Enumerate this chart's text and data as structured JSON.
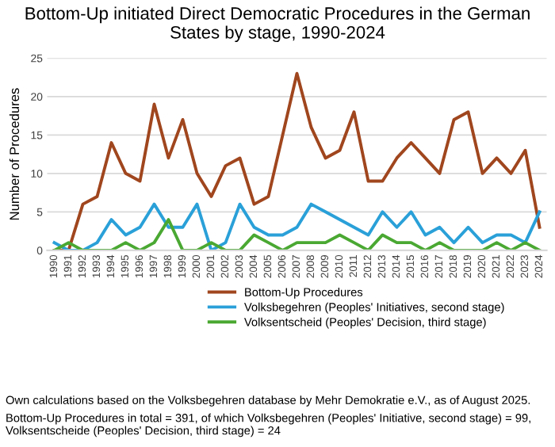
{
  "chart_data": {
    "type": "line",
    "title": "Bottom-Up initiated Direct Democratic Procedures in the German States by stage, 1990-2024",
    "ylabel": "Number of Procedures",
    "categories": [
      "1990",
      "1991",
      "1992",
      "1993",
      "1994",
      "1995",
      "1996",
      "1997",
      "1998",
      "1999",
      "2000",
      "2001",
      "2002",
      "2003",
      "2004",
      "2005",
      "2006",
      "2007",
      "2008",
      "2009",
      "2010",
      "2011",
      "2012",
      "2013",
      "2014",
      "2015",
      "2016",
      "2017",
      "2018",
      "2019",
      "2020",
      "2021",
      "2022",
      "2023",
      "2024"
    ],
    "series": [
      {
        "name": "Bottom-Up Procedures",
        "color": "#a0461e",
        "values": [
          0,
          0,
          6,
          7,
          14,
          10,
          9,
          19,
          12,
          17,
          10,
          7,
          11,
          12,
          6,
          7,
          15,
          23,
          16,
          12,
          13,
          18,
          9,
          9,
          12,
          14,
          12,
          10,
          17,
          18,
          10,
          12,
          10,
          13,
          3
        ]
      },
      {
        "name": "Volksbegehren (Peoples' Initiatives, second stage)",
        "color": "#2aa0d8",
        "values": [
          1,
          0,
          0,
          1,
          4,
          2,
          3,
          6,
          3,
          3,
          6,
          0,
          1,
          6,
          3,
          2,
          2,
          3,
          6,
          5,
          4,
          3,
          2,
          5,
          3,
          5,
          2,
          3,
          1,
          3,
          1,
          2,
          2,
          1,
          5
        ]
      },
      {
        "name": "Volksentscheid (Peoples' Decision, third stage)",
        "color": "#4aa832",
        "values": [
          0,
          1,
          0,
          0,
          0,
          1,
          0,
          1,
          4,
          0,
          0,
          1,
          0,
          0,
          2,
          1,
          0,
          1,
          1,
          1,
          2,
          1,
          0,
          2,
          1,
          1,
          0,
          1,
          0,
          0,
          0,
          1,
          0,
          1,
          0
        ]
      }
    ],
    "ylim": [
      0,
      25
    ],
    "yticks": [
      0,
      5,
      10,
      15,
      20,
      25
    ],
    "grid": "y",
    "legend": "bottom",
    "marker": "none",
    "line_style": "solid",
    "annotations": [
      "Own calculations based on the Volksbegehren database by Mehr Demokratie e.V., as of August 2025.",
      "Bottom-Up Procedures in total = 391, of which Volksbegehren (Peoples' Initiative, second stage) = 99, Volksentscheide (Peoples' Decision, third stage) = 24"
    ]
  }
}
